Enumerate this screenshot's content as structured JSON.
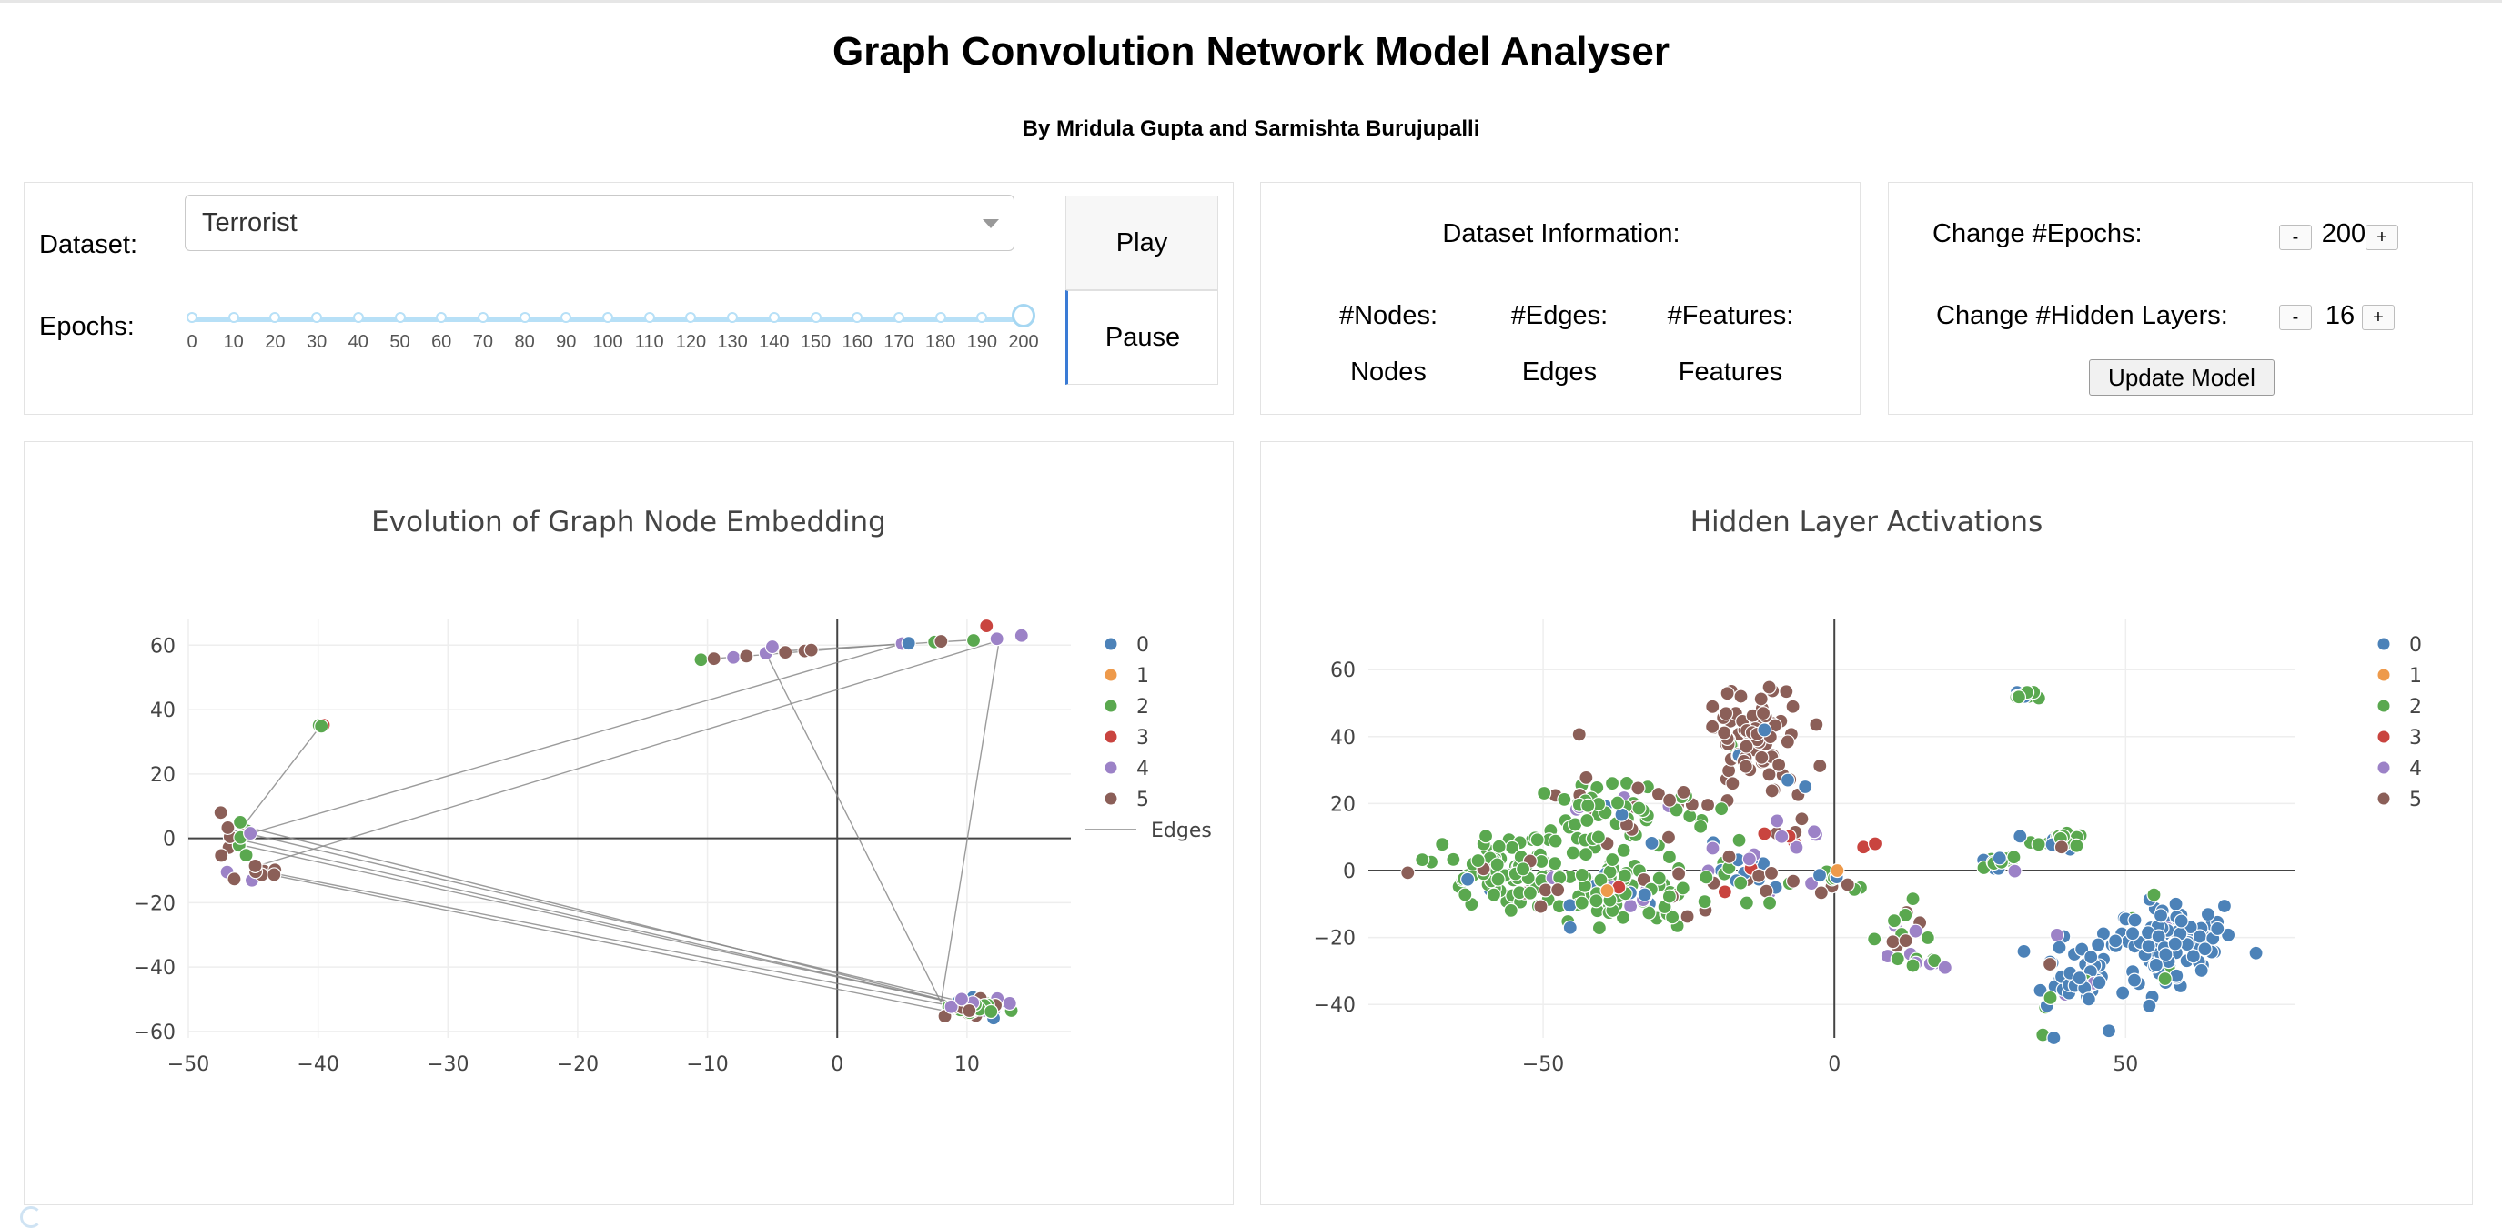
{
  "header": {
    "title": "Graph Convolution Network Model Analyser",
    "subtitle": "By Mridula Gupta and Sarmishta Burujupalli"
  },
  "controls": {
    "dataset_label": "Dataset:",
    "dataset_value": "Terrorist",
    "epochs_label": "Epochs:",
    "slider_ticks": [
      "0",
      "10",
      "20",
      "30",
      "40",
      "50",
      "60",
      "70",
      "80",
      "90",
      "100",
      "110",
      "120",
      "130",
      "140",
      "150",
      "160",
      "170",
      "180",
      "190",
      "200"
    ],
    "slider_value": 200,
    "play_label": "Play",
    "pause_label": "Pause"
  },
  "dataset_info": {
    "heading": "Dataset Information:",
    "nodes_label": "#Nodes:",
    "edges_label": "#Edges:",
    "features_label": "#Features:",
    "nodes_value": "Nodes",
    "edges_value": "Edges",
    "features_value": "Features"
  },
  "model_controls": {
    "epochs_label": "Change #Epochs:",
    "epochs_value": "200",
    "hidden_label": "Change #Hidden Layers:",
    "hidden_value": "16",
    "minus": "-",
    "plus": "+",
    "update_label": "Update Model"
  },
  "colors": {
    "0": "#4c82b8",
    "1": "#ee9a4b",
    "2": "#5aa84f",
    "3": "#c9443f",
    "4": "#9c82c7",
    "5": "#8b5f58",
    "edges": "#8a8a8a",
    "slider": "#b7e0f7"
  },
  "chart_data": [
    {
      "type": "scatter",
      "title": "Evolution of Graph Node Embedding",
      "xlim": [
        -50,
        18
      ],
      "ylim": [
        -62,
        68
      ],
      "xticks": [
        -50,
        -40,
        -30,
        -20,
        -10,
        0,
        10
      ],
      "xtick_labels": [
        "−50",
        "−40",
        "−30",
        "−20",
        "−10",
        "0",
        "10"
      ],
      "yticks": [
        -60,
        -40,
        -20,
        0,
        20,
        40,
        60
      ],
      "ytick_labels": [
        "−60",
        "−40",
        "−20",
        "0",
        "20",
        "40",
        "60"
      ],
      "grid": true,
      "legend_position": "right",
      "legend": [
        "0",
        "1",
        "2",
        "3",
        "4",
        "5",
        "Edges"
      ],
      "clusters": [
        {
          "cx": 10.5,
          "cy": -52,
          "sx": 1.2,
          "sy": 1.2,
          "n": 60,
          "mix": {
            "5": 0.45,
            "2": 0.3,
            "4": 0.15,
            "0": 0.05,
            "3": 0.05
          }
        },
        {
          "cx": -46.5,
          "cy": 0,
          "sx": 1.0,
          "sy": 3.5,
          "n": 12,
          "mix": {
            "5": 0.6,
            "2": 0.3,
            "4": 0.1
          }
        },
        {
          "cx": -44.5,
          "cy": -10,
          "sx": 0.8,
          "sy": 1.0,
          "n": 8,
          "mix": {
            "5": 0.7,
            "4": 0.3
          }
        },
        {
          "cx": -39.8,
          "cy": 35,
          "sx": 0.3,
          "sy": 0.3,
          "n": 3,
          "mix": {
            "2": 0.6,
            "3": 0.4
          }
        }
      ],
      "points": [
        {
          "x": -10.5,
          "y": 55.5,
          "s": 2
        },
        {
          "x": -9.5,
          "y": 55.8,
          "s": 5
        },
        {
          "x": -8,
          "y": 56.2,
          "s": 4
        },
        {
          "x": -7,
          "y": 56.6,
          "s": 5
        },
        {
          "x": -5.5,
          "y": 57.5,
          "s": 4
        },
        {
          "x": -5,
          "y": 59.5,
          "s": 4
        },
        {
          "x": -4,
          "y": 57.8,
          "s": 5
        },
        {
          "x": -2.5,
          "y": 58.2,
          "s": 5
        },
        {
          "x": -2,
          "y": 58.5,
          "s": 5
        },
        {
          "x": 5,
          "y": 60.5,
          "s": 4
        },
        {
          "x": 5.5,
          "y": 60.6,
          "s": 0
        },
        {
          "x": 7.5,
          "y": 61,
          "s": 2
        },
        {
          "x": 8,
          "y": 61.2,
          "s": 5
        },
        {
          "x": 10.5,
          "y": 61.5,
          "s": 2
        },
        {
          "x": 11.5,
          "y": 66,
          "s": 3
        },
        {
          "x": 12.3,
          "y": 62,
          "s": 4
        },
        {
          "x": 14.2,
          "y": 63,
          "s": 4
        },
        {
          "x": -47.5,
          "y": 8,
          "s": 5
        },
        {
          "x": -46,
          "y": 5,
          "s": 2
        }
      ],
      "edges": [
        [
          -46.5,
          0,
          10,
          -52
        ],
        [
          -47,
          5,
          9,
          -51
        ],
        [
          -44.5,
          -10,
          10,
          -53
        ],
        [
          -46,
          -2,
          10,
          -52
        ],
        [
          -47,
          3,
          12,
          -53
        ],
        [
          -46.5,
          0,
          5,
          60.5
        ],
        [
          -45,
          -9,
          12.5,
          61.5
        ],
        [
          -44,
          -11,
          10,
          -55
        ],
        [
          -46.5,
          0,
          -39.8,
          35
        ],
        [
          -5.5,
          57.5,
          8,
          -51
        ],
        [
          12.5,
          62,
          8,
          -51
        ],
        [
          -5,
          58,
          10,
          61.5
        ],
        [
          -10.5,
          55.5,
          5,
          60.5
        ]
      ]
    },
    {
      "type": "scatter",
      "title": "Hidden Layer Activations",
      "xlim": [
        -80,
        79
      ],
      "ylim": [
        -50,
        75
      ],
      "xticks": [
        -50,
        0,
        50
      ],
      "xtick_labels": [
        "−50",
        "0",
        "50"
      ],
      "yticks": [
        -40,
        -20,
        0,
        20,
        40,
        60
      ],
      "ytick_labels": [
        "−40",
        "−20",
        "0",
        "20",
        "40",
        "60"
      ],
      "grid": true,
      "legend_position": "right",
      "legend": [
        "0",
        "1",
        "2",
        "3",
        "4",
        "5"
      ],
      "clusters": [
        {
          "cx": -55,
          "cy": 0,
          "sx": 6,
          "sy": 6,
          "n": 90,
          "mix": {
            "2": 0.9,
            "0": 0.05,
            "5": 0.05
          }
        },
        {
          "cx": -38,
          "cy": -7,
          "sx": 7,
          "sy": 4,
          "n": 80,
          "mix": {
            "2": 0.82,
            "0": 0.08,
            "5": 0.05,
            "4": 0.05
          }
        },
        {
          "cx": -38,
          "cy": 17,
          "sx": 6,
          "sy": 7,
          "n": 60,
          "mix": {
            "2": 0.7,
            "5": 0.15,
            "4": 0.1,
            "0": 0.05
          }
        },
        {
          "cx": -14,
          "cy": 40,
          "sx": 4,
          "sy": 8,
          "n": 80,
          "mix": {
            "5": 0.92,
            "0": 0.04,
            "2": 0.04
          }
        },
        {
          "cx": -25,
          "cy": 20,
          "sx": 2.5,
          "sy": 4,
          "n": 14,
          "mix": {
            "5": 0.7,
            "2": 0.3
          }
        },
        {
          "cx": -16,
          "cy": 0,
          "sx": 6,
          "sy": 4,
          "n": 35,
          "mix": {
            "2": 0.4,
            "4": 0.2,
            "0": 0.2,
            "5": 0.15,
            "3": 0.05
          }
        },
        {
          "cx": 33,
          "cy": 52.5,
          "sx": 1.2,
          "sy": 0.8,
          "n": 14,
          "mix": {
            "2": 0.6,
            "0": 0.4
          }
        },
        {
          "cx": 56,
          "cy": -22,
          "sx": 5,
          "sy": 7,
          "n": 110,
          "mix": {
            "0": 0.92,
            "2": 0.04,
            "4": 0.04
          }
        },
        {
          "cx": 40,
          "cy": -32,
          "sx": 4,
          "sy": 6,
          "n": 45,
          "mix": {
            "0": 0.82,
            "4": 0.1,
            "2": 0.08
          }
        },
        {
          "cx": 39,
          "cy": 9,
          "sx": 2.5,
          "sy": 1.2,
          "n": 20,
          "mix": {
            "2": 0.55,
            "0": 0.45
          }
        },
        {
          "cx": 28,
          "cy": 2,
          "sx": 3,
          "sy": 1.2,
          "n": 16,
          "mix": {
            "2": 0.7,
            "4": 0.1,
            "0": 0.2
          }
        },
        {
          "cx": 12,
          "cy": -18,
          "sx": 2.5,
          "sy": 4,
          "n": 18,
          "mix": {
            "2": 0.5,
            "5": 0.3,
            "4": 0.2
          }
        },
        {
          "cx": 14,
          "cy": -27,
          "sx": 2,
          "sy": 1.2,
          "n": 8,
          "mix": {
            "2": 0.6,
            "4": 0.4
          }
        },
        {
          "cx": 0,
          "cy": -2,
          "sx": 4,
          "sy": 2,
          "n": 12,
          "mix": {
            "0": 0.5,
            "2": 0.3,
            "5": 0.2
          }
        },
        {
          "cx": -7,
          "cy": 10,
          "sx": 3,
          "sy": 4,
          "n": 10,
          "mix": {
            "4": 0.5,
            "5": 0.3,
            "3": 0.2
          }
        }
      ],
      "points": [
        {
          "x": -8,
          "y": 27,
          "s": 0
        },
        {
          "x": -12,
          "y": 42,
          "s": 0
        },
        {
          "x": -5,
          "y": 25,
          "s": 0
        },
        {
          "x": -12,
          "y": 11,
          "s": 3
        },
        {
          "x": 5,
          "y": 7,
          "s": 3
        },
        {
          "x": 7,
          "y": 8,
          "s": 3
        },
        {
          "x": -37,
          "y": -5,
          "s": 3
        },
        {
          "x": -39,
          "y": -6,
          "s": 1
        },
        {
          "x": 0.5,
          "y": 0,
          "s": 1
        },
        {
          "x": 19,
          "y": -29,
          "s": 4
        },
        {
          "x": 39,
          "y": 7,
          "s": 5
        },
        {
          "x": 37,
          "y": -28,
          "s": 5
        },
        {
          "x": -22,
          "y": -2,
          "s": 2
        }
      ]
    }
  ]
}
